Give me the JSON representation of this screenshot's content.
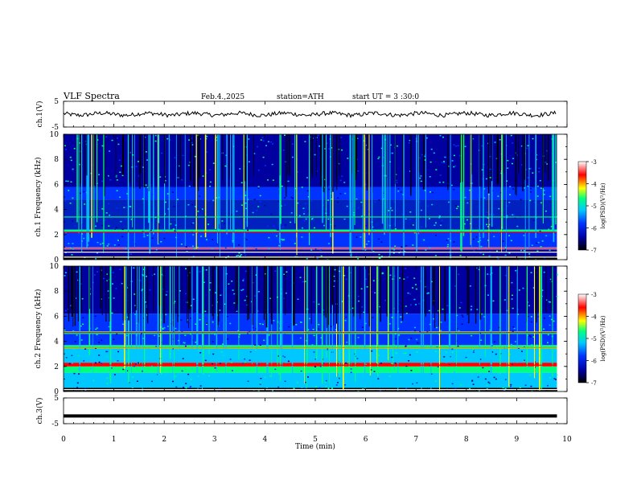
{
  "header": {
    "title": "VLF  Spectra",
    "date": "Feb.4.,2025",
    "station": "station=ATH",
    "start_ut": "start UT =  3 :30:0"
  },
  "chart_data": [
    {
      "type": "line",
      "name": "ch1-waveform",
      "ylabel": "ch.1(V)",
      "ylim": [
        -5,
        5
      ],
      "yticks": [
        "5",
        "-5"
      ],
      "baseline": 0,
      "color": "#000000"
    },
    {
      "type": "heatmap",
      "name": "ch1-spectrogram",
      "ylabel": "ch.1 Frequency (kHz)",
      "ylim": [
        0,
        10
      ],
      "yticks": [
        "0",
        "2",
        "4",
        "6",
        "8",
        "10"
      ],
      "colorbar_label": "log(PSD)(V²/Hz)",
      "colorbar_ticks": [
        "-3",
        "-4",
        "-5",
        "-6",
        "-7"
      ],
      "colorbar_range": [
        -7,
        -3
      ],
      "colors": [
        "#000000",
        "#0000a0",
        "#0033ff",
        "#00c8ff",
        "#00ff80",
        "#ffff00",
        "#ff0000",
        "#ffffff"
      ]
    },
    {
      "type": "heatmap",
      "name": "ch2-spectrogram",
      "ylabel": "ch.2 Frequency (kHz)",
      "ylim": [
        0,
        10
      ],
      "yticks": [
        "0",
        "2",
        "4",
        "6",
        "8",
        "10"
      ],
      "colorbar_label": "log(PSD)(V²/Hz)",
      "colorbar_ticks": [
        "-3",
        "-4",
        "-5",
        "-6",
        "-7"
      ],
      "colorbar_range": [
        -7,
        -3
      ],
      "colors": [
        "#000000",
        "#0000a0",
        "#0033ff",
        "#00c8ff",
        "#00ff80",
        "#ffff00",
        "#ff0000",
        "#ffffff"
      ]
    },
    {
      "type": "line",
      "name": "ch3-waveform",
      "ylabel": "ch.3(V)",
      "ylim": [
        -5,
        5
      ],
      "yticks": [
        "5",
        "-5"
      ],
      "baseline": -2,
      "color": "#000000"
    }
  ],
  "xaxis": {
    "label": "Time  (min)",
    "range": [
      0,
      10
    ],
    "ticks": [
      "0",
      "1",
      "2",
      "3",
      "4",
      "5",
      "6",
      "7",
      "8",
      "9",
      "10"
    ],
    "data_end": 9.8
  }
}
